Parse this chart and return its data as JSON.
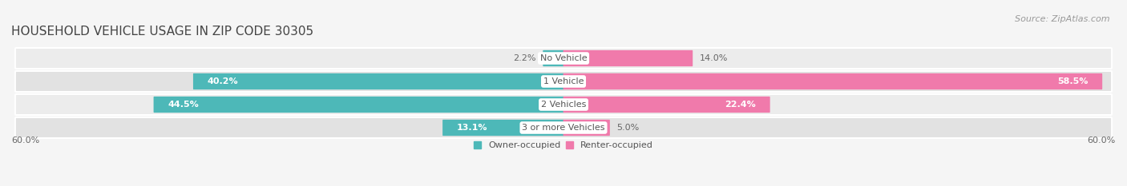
{
  "title": "HOUSEHOLD VEHICLE USAGE IN ZIP CODE 30305",
  "source": "Source: ZipAtlas.com",
  "categories": [
    "No Vehicle",
    "1 Vehicle",
    "2 Vehicles",
    "3 or more Vehicles"
  ],
  "owner_values": [
    2.2,
    40.2,
    44.5,
    13.1
  ],
  "renter_values": [
    14.0,
    58.5,
    22.4,
    5.0
  ],
  "owner_color": "#4db8b8",
  "renter_color": "#f07aab",
  "owner_label": "Owner-occupied",
  "renter_label": "Renter-occupied",
  "xlim": 60.0,
  "bar_height": 0.62,
  "row_bg_color_odd": "#ececec",
  "row_bg_color_even": "#e2e2e2",
  "background_color": "#f5f5f5",
  "title_fontsize": 11,
  "source_fontsize": 8,
  "label_fontsize": 8,
  "value_fontsize": 8,
  "axis_tick_fontsize": 8
}
